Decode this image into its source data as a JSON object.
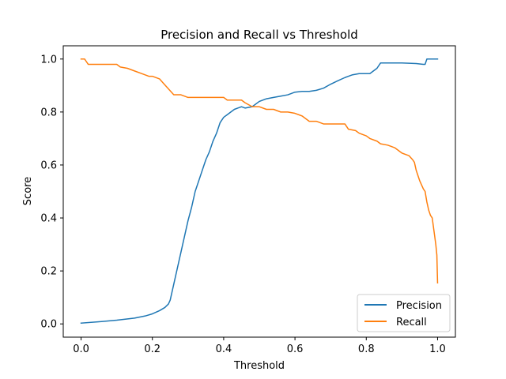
{
  "chart_data": {
    "type": "line",
    "title": "Precision and Recall vs Threshold",
    "xlabel": "Threshold",
    "ylabel": "Score",
    "xlim": [
      -0.05,
      1.05
    ],
    "ylim": [
      -0.05,
      1.05
    ],
    "xticks": [
      0.0,
      0.2,
      0.4,
      0.6,
      0.8,
      1.0
    ],
    "xtick_labels": [
      "0.0",
      "0.2",
      "0.4",
      "0.6",
      "0.8",
      "1.0"
    ],
    "yticks": [
      0.0,
      0.2,
      0.4,
      0.6,
      0.8,
      1.0
    ],
    "ytick_labels": [
      "0.0",
      "0.2",
      "0.4",
      "0.6",
      "0.8",
      "1.0"
    ],
    "grid": false,
    "legend_position": "lower-right",
    "series": [
      {
        "name": "Precision",
        "color": "#1f77b4",
        "x": [
          0.0,
          0.05,
          0.1,
          0.15,
          0.18,
          0.2,
          0.22,
          0.235,
          0.245,
          0.25,
          0.255,
          0.26,
          0.27,
          0.28,
          0.29,
          0.3,
          0.31,
          0.32,
          0.33,
          0.34,
          0.35,
          0.36,
          0.37,
          0.38,
          0.39,
          0.4,
          0.41,
          0.42,
          0.43,
          0.44,
          0.45,
          0.46,
          0.48,
          0.5,
          0.52,
          0.54,
          0.56,
          0.58,
          0.6,
          0.62,
          0.64,
          0.66,
          0.68,
          0.7,
          0.72,
          0.74,
          0.75,
          0.76,
          0.78,
          0.8,
          0.81,
          0.82,
          0.83,
          0.84,
          0.86,
          0.88,
          0.9,
          0.92,
          0.94,
          0.96,
          0.965,
          0.97,
          0.98,
          0.99,
          1.0
        ],
        "y": [
          0.003,
          0.008,
          0.014,
          0.022,
          0.03,
          0.038,
          0.05,
          0.062,
          0.075,
          0.09,
          0.12,
          0.15,
          0.21,
          0.27,
          0.33,
          0.39,
          0.44,
          0.5,
          0.54,
          0.58,
          0.62,
          0.65,
          0.69,
          0.72,
          0.76,
          0.78,
          0.79,
          0.8,
          0.81,
          0.815,
          0.82,
          0.815,
          0.82,
          0.84,
          0.85,
          0.855,
          0.86,
          0.865,
          0.875,
          0.878,
          0.878,
          0.882,
          0.89,
          0.905,
          0.918,
          0.93,
          0.935,
          0.94,
          0.945,
          0.945,
          0.945,
          0.955,
          0.965,
          0.985,
          0.985,
          0.985,
          0.985,
          0.984,
          0.983,
          0.98,
          0.98,
          1.0,
          1.0,
          1.0,
          1.0
        ]
      },
      {
        "name": "Recall",
        "color": "#ff7f0e",
        "x": [
          0.0,
          0.01,
          0.015,
          0.02,
          0.05,
          0.1,
          0.11,
          0.13,
          0.15,
          0.17,
          0.19,
          0.2,
          0.22,
          0.23,
          0.24,
          0.25,
          0.26,
          0.28,
          0.3,
          0.35,
          0.4,
          0.41,
          0.42,
          0.45,
          0.46,
          0.48,
          0.5,
          0.52,
          0.54,
          0.56,
          0.58,
          0.6,
          0.62,
          0.63,
          0.64,
          0.66,
          0.68,
          0.7,
          0.72,
          0.74,
          0.75,
          0.77,
          0.78,
          0.8,
          0.81,
          0.83,
          0.84,
          0.86,
          0.87,
          0.88,
          0.9,
          0.91,
          0.92,
          0.93,
          0.935,
          0.94,
          0.95,
          0.96,
          0.965,
          0.97,
          0.975,
          0.98,
          0.985,
          0.99,
          0.995,
          0.998,
          1.0
        ],
        "y": [
          1.0,
          1.0,
          0.99,
          0.98,
          0.98,
          0.98,
          0.97,
          0.965,
          0.955,
          0.945,
          0.935,
          0.935,
          0.925,
          0.91,
          0.895,
          0.88,
          0.865,
          0.865,
          0.855,
          0.855,
          0.855,
          0.845,
          0.845,
          0.845,
          0.835,
          0.82,
          0.82,
          0.81,
          0.81,
          0.8,
          0.8,
          0.795,
          0.785,
          0.775,
          0.765,
          0.765,
          0.755,
          0.755,
          0.755,
          0.755,
          0.735,
          0.73,
          0.72,
          0.71,
          0.7,
          0.69,
          0.68,
          0.675,
          0.67,
          0.665,
          0.645,
          0.64,
          0.635,
          0.62,
          0.61,
          0.58,
          0.54,
          0.51,
          0.5,
          0.46,
          0.43,
          0.41,
          0.4,
          0.35,
          0.3,
          0.26,
          0.155
        ]
      }
    ]
  }
}
